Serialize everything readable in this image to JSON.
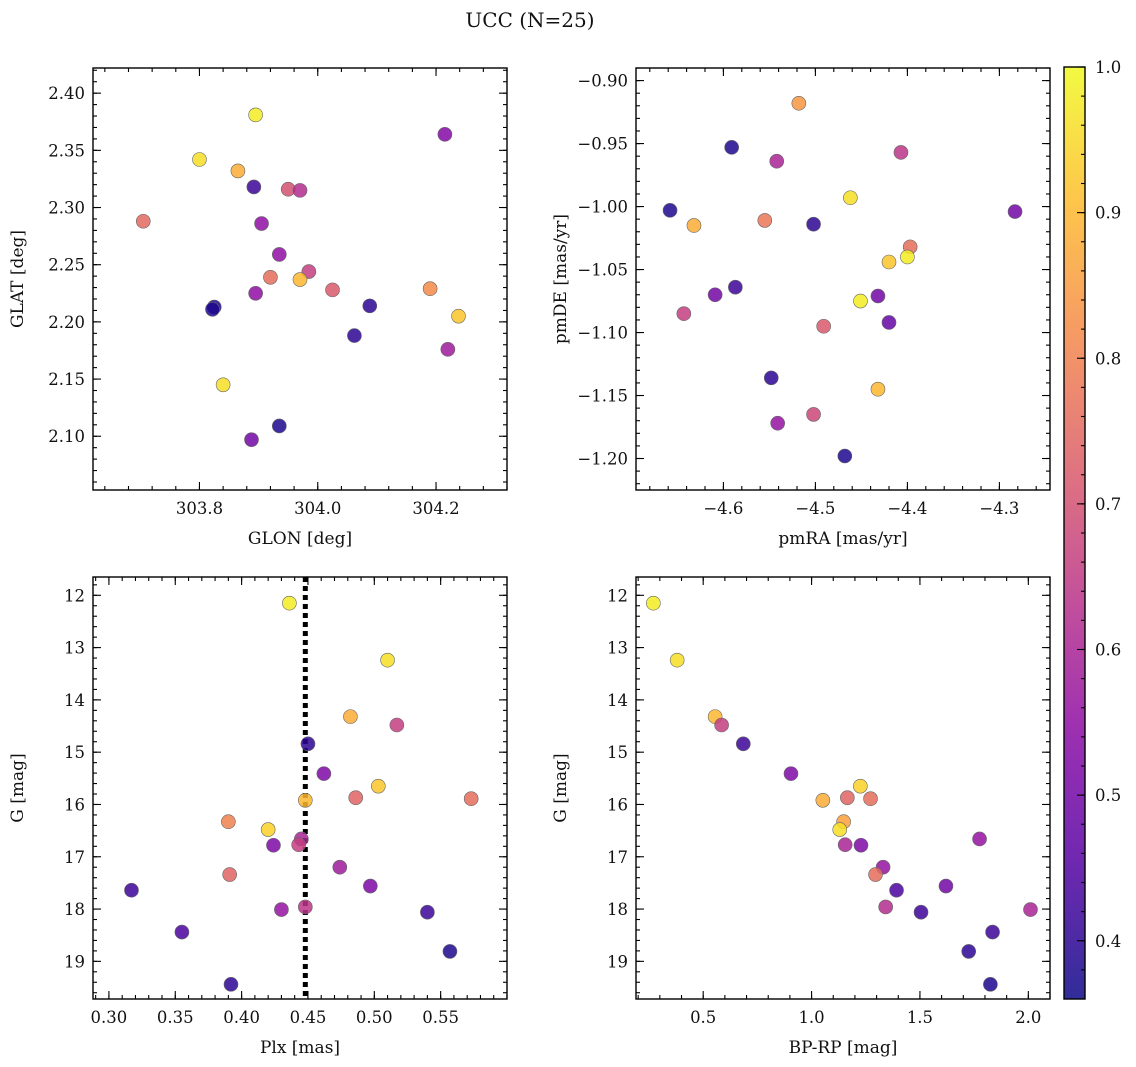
{
  "figure": {
    "title": "UCC (N=25)"
  },
  "colorbar": {
    "cmap": "plasma",
    "range": [
      0.36,
      1.0
    ],
    "ticks": [
      "0.4",
      "0.5",
      "0.6",
      "0.7",
      "0.8",
      "0.9",
      "1.0"
    ]
  },
  "chart_data": [
    {
      "type": "scatter",
      "name": "glon-glat",
      "xlabel": "GLON [deg]",
      "ylabel": "GLAT [deg]",
      "xlim": [
        303.62,
        304.32
      ],
      "ylim": [
        2.053,
        2.422
      ],
      "invert_y": false,
      "xticks": [
        303.8,
        304.0,
        304.2
      ],
      "xtick_labels": [
        "303.8",
        "304.0",
        "304.2"
      ],
      "yticks": [
        2.1,
        2.15,
        2.2,
        2.25,
        2.3,
        2.35,
        2.4
      ],
      "ytick_labels": [
        "2.10",
        "2.15",
        "2.20",
        "2.25",
        "2.30",
        "2.35",
        "2.40"
      ],
      "x": [
        303.895,
        303.8,
        303.865,
        303.705,
        303.892,
        303.95,
        303.97,
        303.905,
        303.935,
        303.985,
        303.92,
        303.97,
        304.025,
        303.895,
        303.825,
        303.822,
        304.088,
        304.062,
        304.19,
        304.238,
        304.22,
        303.84,
        303.935,
        303.888,
        304.215
      ],
      "y": [
        2.381,
        2.342,
        2.332,
        2.288,
        2.318,
        2.316,
        2.315,
        2.286,
        2.259,
        2.244,
        2.239,
        2.237,
        2.228,
        2.225,
        2.213,
        2.211,
        2.214,
        2.188,
        2.229,
        2.205,
        2.176,
        2.145,
        2.109,
        2.097,
        2.364
      ],
      "c": [
        0.98,
        0.96,
        0.88,
        0.75,
        0.42,
        0.7,
        0.62,
        0.55,
        0.55,
        0.66,
        0.76,
        0.9,
        0.72,
        0.55,
        0.38,
        0.38,
        0.4,
        0.4,
        0.82,
        0.92,
        0.58,
        0.96,
        0.38,
        0.5,
        0.53
      ]
    },
    {
      "type": "scatter",
      "name": "pmra-pmde",
      "xlabel": "pmRA [mas/yr]",
      "ylabel": "pmDE [mas/yr]",
      "xlim": [
        -4.695,
        -4.245
      ],
      "ylim": [
        -1.225,
        -0.89
      ],
      "invert_y": false,
      "xticks": [
        -4.6,
        -4.5,
        -4.4,
        -4.3
      ],
      "xtick_labels": [
        "−4.6",
        "−4.5",
        "−4.4",
        "−4.3"
      ],
      "yticks": [
        -1.2,
        -1.15,
        -1.1,
        -1.05,
        -1.0,
        -0.95,
        -0.9
      ],
      "ytick_labels": [
        "−1.20",
        "−1.15",
        "−1.10",
        "−1.05",
        "−1.00",
        "−0.95",
        "−0.90"
      ],
      "x": [
        -4.518,
        -4.591,
        -4.542,
        -4.407,
        -4.462,
        -4.658,
        -4.632,
        -4.555,
        -4.502,
        -4.283,
        -4.397,
        -4.42,
        -4.4,
        -4.609,
        -4.587,
        -4.451,
        -4.432,
        -4.643,
        -4.42,
        -4.491,
        -4.548,
        -4.432,
        -4.502,
        -4.541,
        -4.468
      ],
      "y": [
        -0.918,
        -0.953,
        -0.964,
        -0.957,
        -0.993,
        -1.003,
        -1.015,
        -1.011,
        -1.014,
        -1.004,
        -1.032,
        -1.044,
        -1.04,
        -1.07,
        -1.064,
        -1.075,
        -1.071,
        -1.085,
        -1.092,
        -1.095,
        -1.136,
        -1.145,
        -1.165,
        -1.172,
        -1.198
      ],
      "c": [
        0.84,
        0.38,
        0.6,
        0.64,
        0.96,
        0.38,
        0.88,
        0.78,
        0.4,
        0.5,
        0.76,
        0.92,
        0.98,
        0.5,
        0.42,
        0.98,
        0.5,
        0.66,
        0.48,
        0.72,
        0.4,
        0.9,
        0.68,
        0.56,
        0.38
      ]
    },
    {
      "type": "scatter",
      "name": "plx-g",
      "xlabel": "Plx [mas]",
      "ylabel": "G [mag]",
      "xlim": [
        0.288,
        0.6
      ],
      "ylim": [
        11.65,
        19.72
      ],
      "invert_y": true,
      "vline": 0.448,
      "xticks": [
        0.3,
        0.35,
        0.4,
        0.45,
        0.5,
        0.55
      ],
      "xtick_labels": [
        "0.30",
        "0.35",
        "0.40",
        "0.45",
        "0.50",
        "0.55"
      ],
      "yticks": [
        12,
        13,
        14,
        15,
        16,
        17,
        18,
        19
      ],
      "ytick_labels": [
        "12",
        "13",
        "14",
        "15",
        "16",
        "17",
        "18",
        "19"
      ],
      "x": [
        0.436,
        0.51,
        0.482,
        0.517,
        0.45,
        0.462,
        0.448,
        0.503,
        0.486,
        0.573,
        0.39,
        0.42,
        0.445,
        0.424,
        0.443,
        0.474,
        0.391,
        0.497,
        0.43,
        0.448,
        0.54,
        0.317,
        0.355,
        0.557,
        0.392
      ],
      "y": [
        12.15,
        13.24,
        14.32,
        14.48,
        14.84,
        15.41,
        15.92,
        15.65,
        15.87,
        15.89,
        16.33,
        16.48,
        16.66,
        16.78,
        16.77,
        17.2,
        17.34,
        17.56,
        18.01,
        17.96,
        18.06,
        17.64,
        18.44,
        18.81,
        19.44
      ],
      "c": [
        0.98,
        0.96,
        0.88,
        0.66,
        0.4,
        0.52,
        0.9,
        0.92,
        0.74,
        0.76,
        0.8,
        0.94,
        0.6,
        0.52,
        0.66,
        0.58,
        0.74,
        0.52,
        0.56,
        0.64,
        0.42,
        0.42,
        0.44,
        0.38,
        0.4
      ]
    },
    {
      "type": "scatter",
      "name": "bprp-g",
      "xlabel": "BP-RP [mag]",
      "ylabel": "G [mag]",
      "xlim": [
        0.19,
        2.1
      ],
      "ylim": [
        11.65,
        19.72
      ],
      "invert_y": true,
      "xticks": [
        0.5,
        1.0,
        1.5,
        2.0
      ],
      "xtick_labels": [
        "0.5",
        "1.0",
        "1.5",
        "2.0"
      ],
      "yticks": [
        12,
        13,
        14,
        15,
        16,
        17,
        18,
        19
      ],
      "ytick_labels": [
        "12",
        "13",
        "14",
        "15",
        "16",
        "17",
        "18",
        "19"
      ],
      "x": [
        0.27,
        0.38,
        0.555,
        0.585,
        0.685,
        0.905,
        1.052,
        1.165,
        1.225,
        1.272,
        1.148,
        1.13,
        1.155,
        1.228,
        1.33,
        1.295,
        1.342,
        1.392,
        1.62,
        1.775,
        1.505,
        2.01,
        1.835,
        1.725,
        1.825
      ],
      "y": [
        12.15,
        13.24,
        14.32,
        14.48,
        14.84,
        15.41,
        15.92,
        15.87,
        15.65,
        15.89,
        16.33,
        16.48,
        16.77,
        16.78,
        17.2,
        17.34,
        17.96,
        17.64,
        17.56,
        16.66,
        18.06,
        18.01,
        18.44,
        18.81,
        19.44
      ],
      "c": [
        0.98,
        0.96,
        0.9,
        0.66,
        0.42,
        0.52,
        0.88,
        0.74,
        0.94,
        0.76,
        0.86,
        0.96,
        0.6,
        0.52,
        0.56,
        0.76,
        0.62,
        0.44,
        0.5,
        0.56,
        0.42,
        0.6,
        0.42,
        0.4,
        0.38
      ]
    }
  ]
}
